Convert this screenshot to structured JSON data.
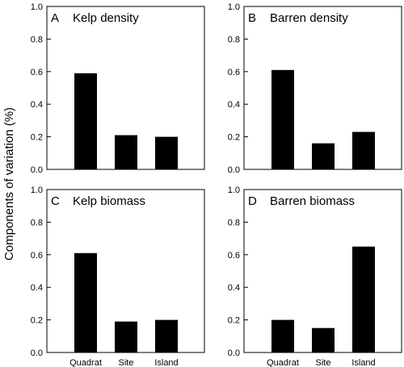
{
  "ylabel": "Components of variation (%)",
  "chart_data": [
    {
      "type": "bar",
      "letter": "A",
      "title": "Kelp density",
      "categories": [
        "Quadrat",
        "Site",
        "Island"
      ],
      "values": [
        0.59,
        0.21,
        0.2
      ],
      "ylim": [
        0,
        1.0
      ],
      "yticks": [
        "0.0",
        "0.2",
        "0.4",
        "0.6",
        "0.8",
        "1.0"
      ]
    },
    {
      "type": "bar",
      "letter": "B",
      "title": "Barren density",
      "categories": [
        "Quadrat",
        "Site",
        "Island"
      ],
      "values": [
        0.61,
        0.16,
        0.23
      ],
      "ylim": [
        0,
        1.0
      ],
      "yticks": [
        "0.0",
        "0.2",
        "0.4",
        "0.6",
        "0.8",
        "1.0"
      ]
    },
    {
      "type": "bar",
      "letter": "C",
      "title": "Kelp biomass",
      "categories": [
        "Quadrat",
        "Site",
        "Island"
      ],
      "values": [
        0.61,
        0.19,
        0.2
      ],
      "ylim": [
        0,
        1.0
      ],
      "yticks": [
        "0.0",
        "0.2",
        "0.4",
        "0.6",
        "0.8",
        "1.0"
      ],
      "show_categories": true
    },
    {
      "type": "bar",
      "letter": "D",
      "title": "Barren biomass",
      "categories": [
        "Quadrat",
        "Site",
        "Island"
      ],
      "values": [
        0.2,
        0.15,
        0.65
      ],
      "ylim": [
        0,
        1.0
      ],
      "yticks": [
        "0.0",
        "0.2",
        "0.4",
        "0.6",
        "0.8",
        "1.0"
      ],
      "show_categories": true
    }
  ]
}
